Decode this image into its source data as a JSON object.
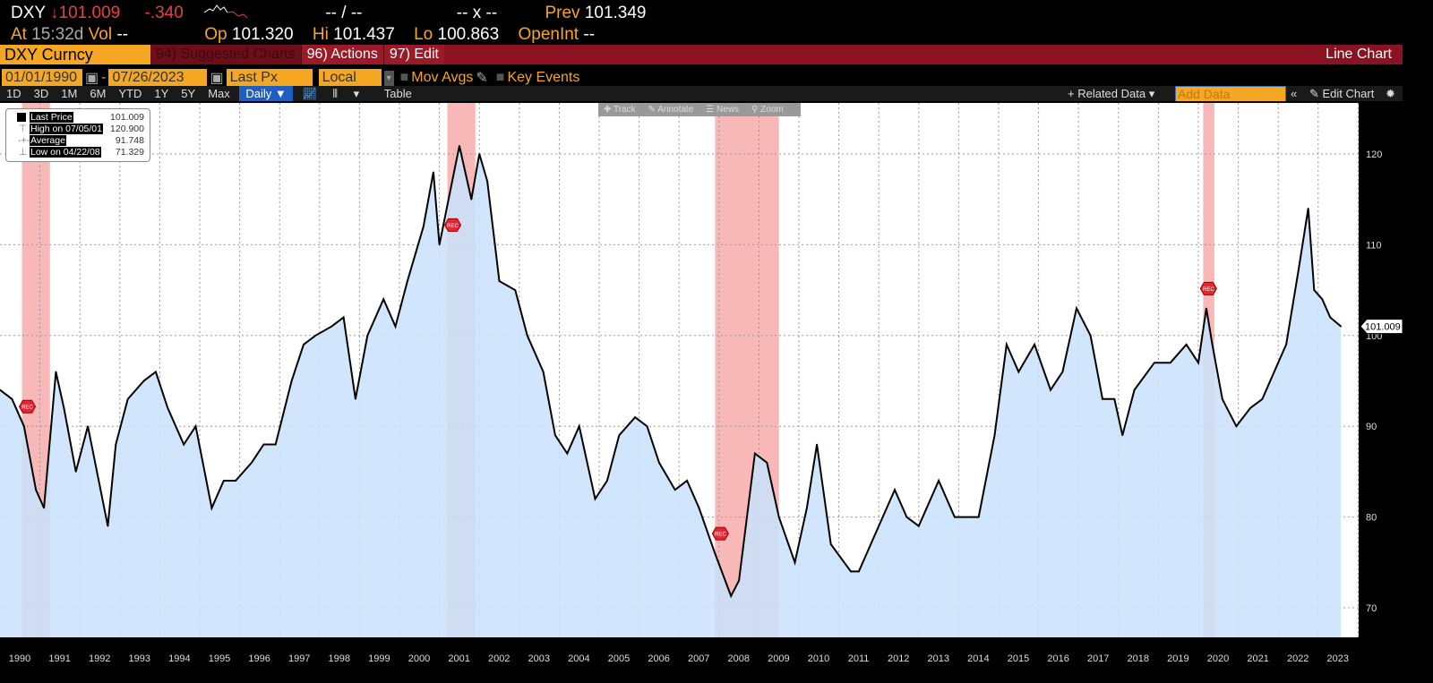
{
  "quote": {
    "ticker": "DXY",
    "direction": "down",
    "last": "101.009",
    "change": "-.340",
    "bidask": "-- / --",
    "size": "-- x --",
    "prev_label": "Prev",
    "prev": "101.349",
    "at_label": "At",
    "time": "15:32d",
    "vol_label": "Vol",
    "vol": "--",
    "op_label": "Op",
    "op": "101.320",
    "hi_label": "Hi",
    "hi": "101.437",
    "lo_label": "Lo",
    "lo": "100.863",
    "oi_label": "OpenInt",
    "oi": "--"
  },
  "toolbar": {
    "security": "DXY Curncy",
    "suggested": "94) Suggested Charts",
    "actions": "96) Actions",
    "edit": "97) Edit",
    "chart_type": "Line Chart"
  },
  "params": {
    "start": "01/01/1990",
    "end": "07/26/2023",
    "field": "Last Px",
    "currency": "Local CCY",
    "mov_avgs": "Mov Avgs",
    "key_events": "Key Events"
  },
  "ranges": [
    "1D",
    "3D",
    "1M",
    "6M",
    "YTD",
    "1Y",
    "5Y",
    "Max"
  ],
  "period": "Daily ▼",
  "table": "Table",
  "related": "+ Related Data ▾",
  "add_data_placeholder": "Add Data",
  "edit_chart": "Edit Chart",
  "float_tools": [
    "Track",
    "Annotate",
    "News",
    "Zoom"
  ],
  "legend": [
    {
      "label": "Last Price",
      "value": "101.009"
    },
    {
      "label": "High on 07/05/01",
      "value": "120.900"
    },
    {
      "label": "Average",
      "value": "91.748"
    },
    {
      "label": "Low on 04/22/08",
      "value": "71.329"
    }
  ],
  "colors": {
    "accent": "#f5a623",
    "header_red": "#8b1220",
    "line": "#000000",
    "area": "#c9e2fb",
    "recession": "#f7a6a6"
  },
  "chart_data": {
    "type": "area",
    "ylim": [
      66.7,
      125.6
    ],
    "xlim": [
      1990,
      2024
    ],
    "grid": true,
    "yticks": [
      70,
      80,
      90,
      100,
      110,
      120
    ],
    "xticks": [
      "1990",
      "1991",
      "1992",
      "1993",
      "1994",
      "1995",
      "1996",
      "1997",
      "1998",
      "1999",
      "2000",
      "2001",
      "2002",
      "2003",
      "2004",
      "2005",
      "2006",
      "2007",
      "2008",
      "2009",
      "2010",
      "2011",
      "2012",
      "2013",
      "2014",
      "2015",
      "2016",
      "2017",
      "2018",
      "2019",
      "2020",
      "2021",
      "2022",
      "2023"
    ],
    "last_value_tag": "101.009",
    "event_marker": "REC",
    "recessions": [
      [
        1990.55,
        1991.25
      ],
      [
        2001.2,
        2001.9
      ],
      [
        2007.9,
        2009.5
      ],
      [
        2020.12,
        2020.4
      ]
    ],
    "series": [
      [
        1990.0,
        94
      ],
      [
        1990.3,
        93
      ],
      [
        1990.6,
        90
      ],
      [
        1990.9,
        83
      ],
      [
        1991.1,
        81
      ],
      [
        1991.4,
        96
      ],
      [
        1991.6,
        92
      ],
      [
        1991.9,
        85
      ],
      [
        1992.2,
        90
      ],
      [
        1992.7,
        79
      ],
      [
        1992.9,
        88
      ],
      [
        1993.2,
        93
      ],
      [
        1993.6,
        95
      ],
      [
        1993.9,
        96
      ],
      [
        1994.2,
        92
      ],
      [
        1994.6,
        88
      ],
      [
        1994.9,
        90
      ],
      [
        1995.3,
        81
      ],
      [
        1995.6,
        84
      ],
      [
        1995.9,
        84
      ],
      [
        1996.3,
        86
      ],
      [
        1996.6,
        88
      ],
      [
        1996.9,
        88
      ],
      [
        1997.3,
        95
      ],
      [
        1997.6,
        99
      ],
      [
        1997.9,
        100
      ],
      [
        1998.3,
        101
      ],
      [
        1998.6,
        102
      ],
      [
        1998.9,
        93
      ],
      [
        1999.2,
        100
      ],
      [
        1999.6,
        104
      ],
      [
        1999.9,
        101
      ],
      [
        2000.2,
        106
      ],
      [
        2000.6,
        112
      ],
      [
        2000.85,
        118
      ],
      [
        2001.0,
        110
      ],
      [
        2001.5,
        120.9
      ],
      [
        2001.8,
        115
      ],
      [
        2002.0,
        120
      ],
      [
        2002.2,
        117
      ],
      [
        2002.5,
        106
      ],
      [
        2002.9,
        105
      ],
      [
        2003.2,
        100
      ],
      [
        2003.6,
        96
      ],
      [
        2003.9,
        89
      ],
      [
        2004.2,
        87
      ],
      [
        2004.5,
        90
      ],
      [
        2004.9,
        82
      ],
      [
        2005.2,
        84
      ],
      [
        2005.5,
        89
      ],
      [
        2005.9,
        91
      ],
      [
        2006.2,
        90
      ],
      [
        2006.5,
        86
      ],
      [
        2006.9,
        83
      ],
      [
        2007.2,
        84
      ],
      [
        2007.5,
        81
      ],
      [
        2007.9,
        76
      ],
      [
        2008.3,
        71.3
      ],
      [
        2008.5,
        73
      ],
      [
        2008.9,
        87
      ],
      [
        2009.2,
        86
      ],
      [
        2009.5,
        80
      ],
      [
        2009.9,
        75
      ],
      [
        2010.2,
        81
      ],
      [
        2010.45,
        88
      ],
      [
        2010.8,
        77
      ],
      [
        2011.3,
        74
      ],
      [
        2011.5,
        74
      ],
      [
        2011.9,
        78
      ],
      [
        2012.4,
        83
      ],
      [
        2012.7,
        80
      ],
      [
        2013.0,
        79
      ],
      [
        2013.5,
        84
      ],
      [
        2013.9,
        80
      ],
      [
        2014.3,
        80
      ],
      [
        2014.5,
        80
      ],
      [
        2014.9,
        89
      ],
      [
        2015.2,
        99
      ],
      [
        2015.5,
        96
      ],
      [
        2015.9,
        99
      ],
      [
        2016.3,
        94
      ],
      [
        2016.6,
        96
      ],
      [
        2016.95,
        103
      ],
      [
        2017.3,
        100
      ],
      [
        2017.6,
        93
      ],
      [
        2017.9,
        93
      ],
      [
        2018.1,
        89
      ],
      [
        2018.4,
        94
      ],
      [
        2018.9,
        97
      ],
      [
        2019.3,
        97
      ],
      [
        2019.7,
        99
      ],
      [
        2020.0,
        97
      ],
      [
        2020.2,
        103
      ],
      [
        2020.35,
        99
      ],
      [
        2020.6,
        93
      ],
      [
        2020.95,
        90
      ],
      [
        2021.3,
        92
      ],
      [
        2021.6,
        93
      ],
      [
        2021.9,
        96
      ],
      [
        2022.2,
        99
      ],
      [
        2022.5,
        107
      ],
      [
        2022.75,
        114
      ],
      [
        2022.9,
        105
      ],
      [
        2023.1,
        104
      ],
      [
        2023.3,
        102
      ],
      [
        2023.57,
        101.009
      ]
    ]
  }
}
